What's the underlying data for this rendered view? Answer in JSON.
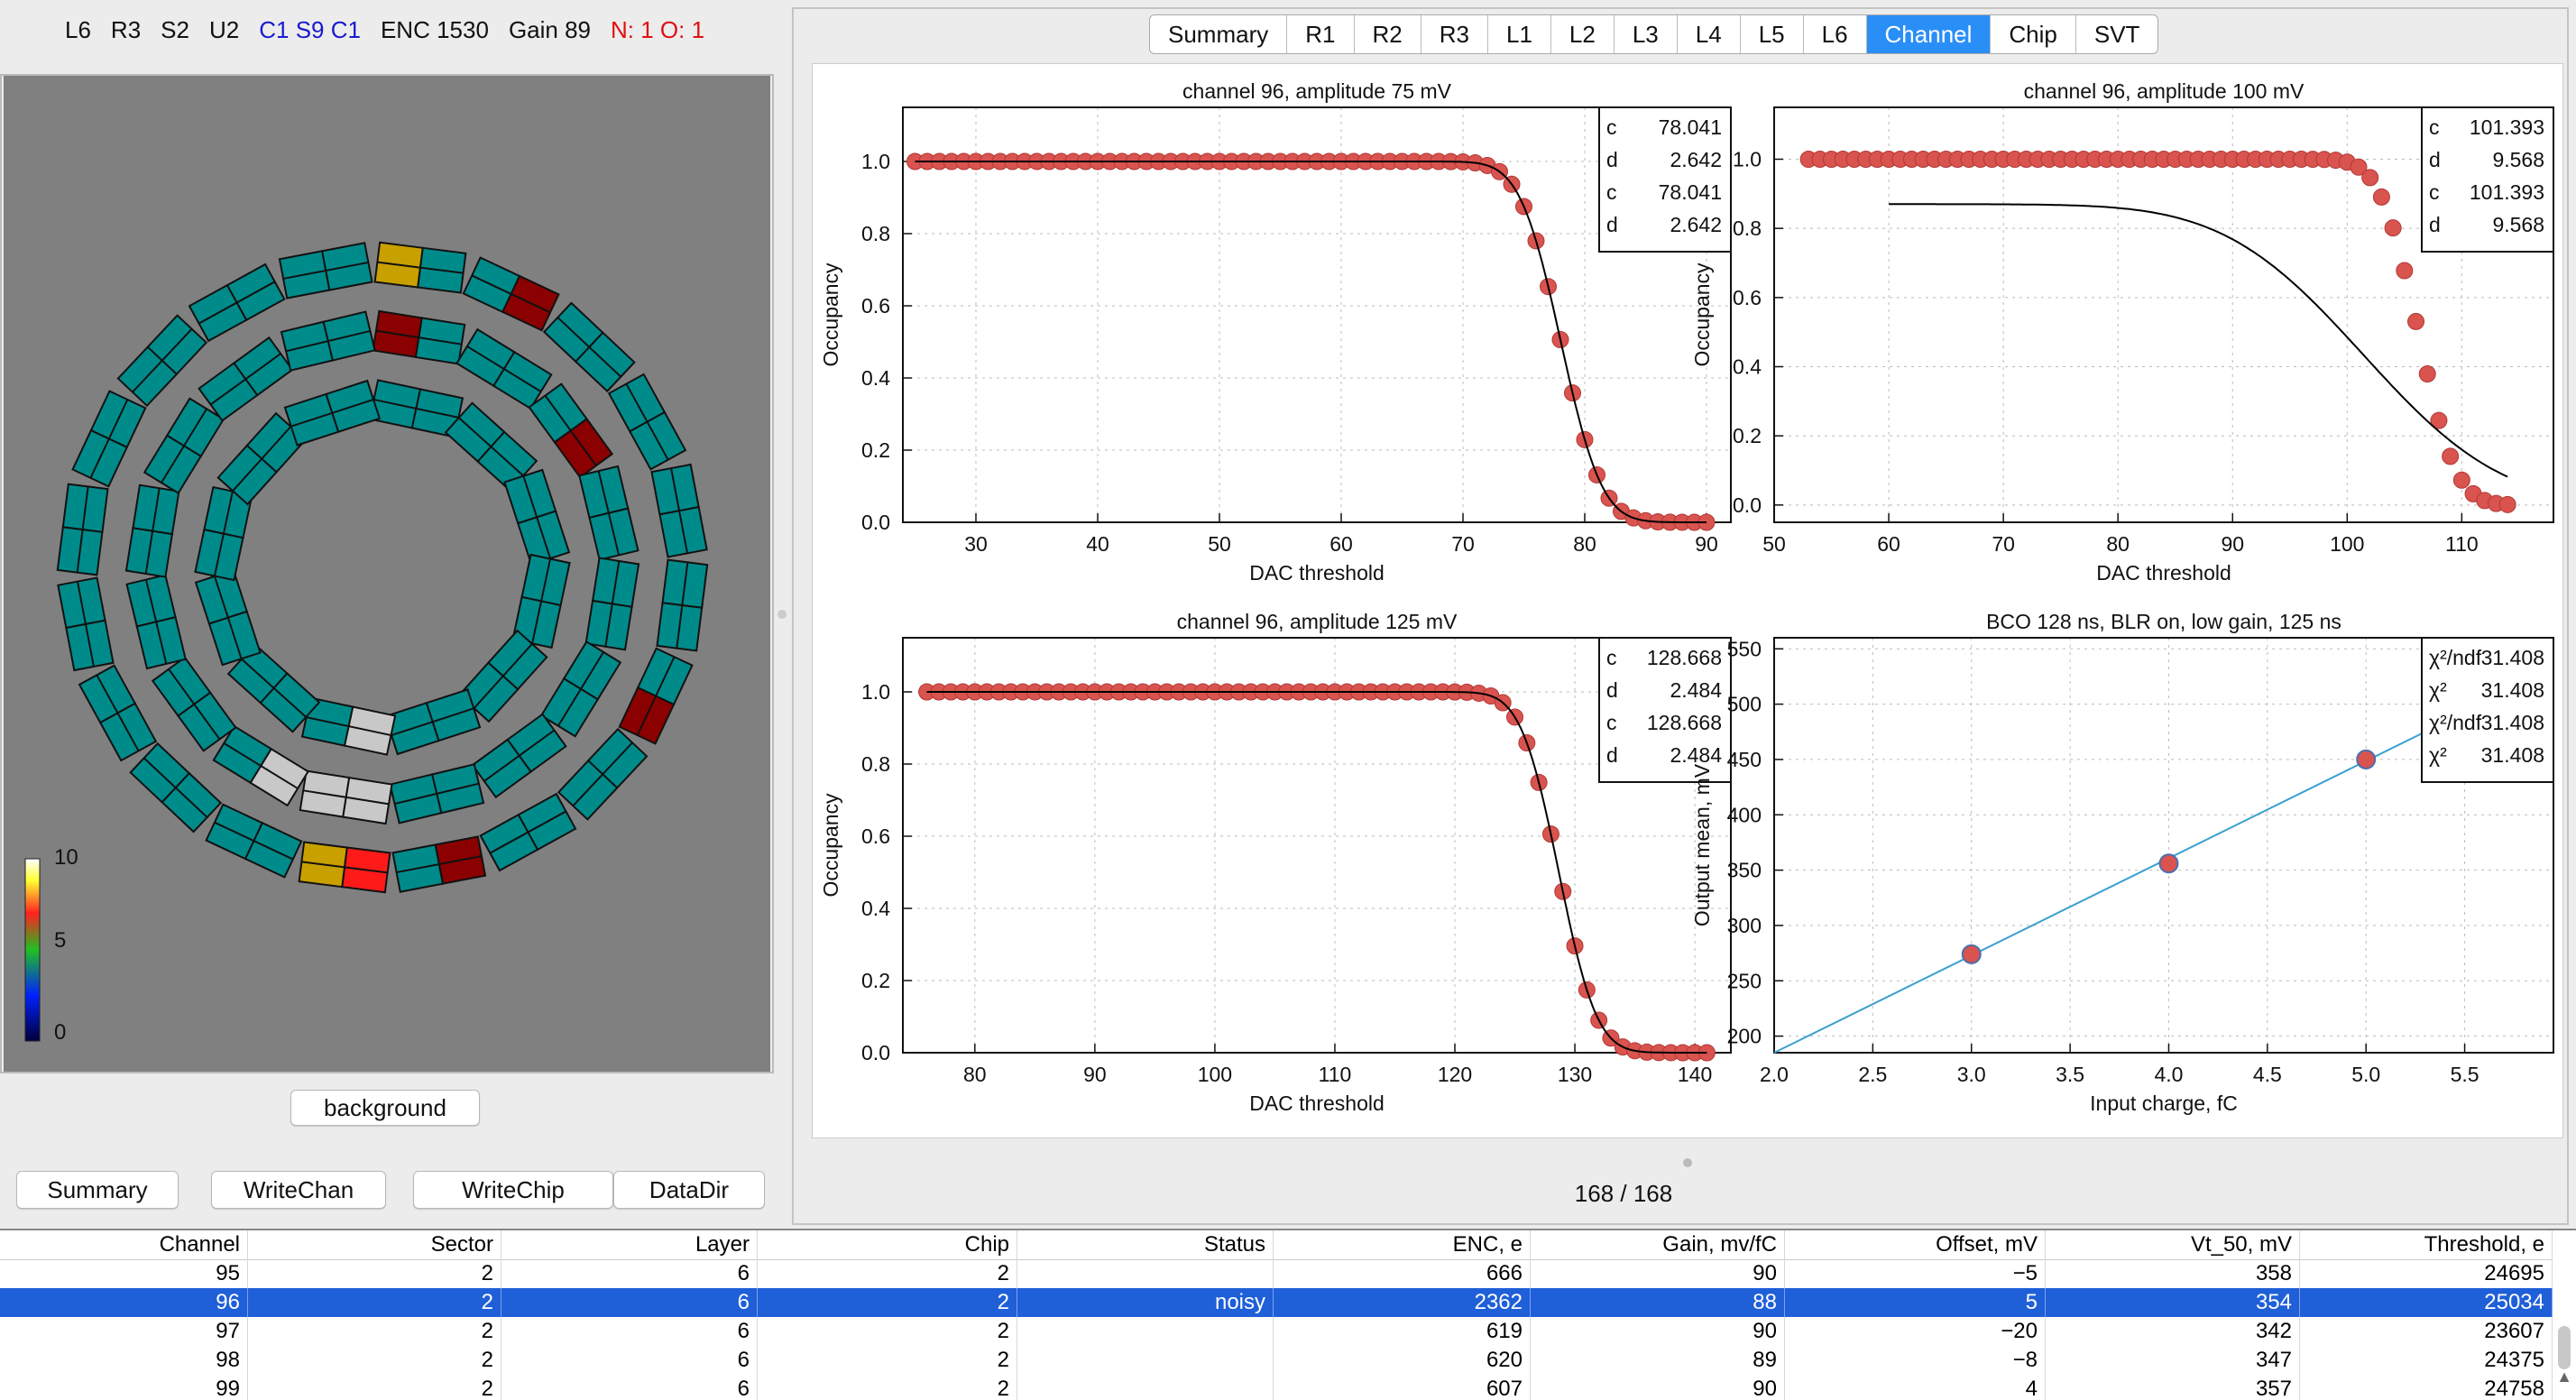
{
  "status": {
    "items": [
      {
        "text": "L6",
        "color": "#111111"
      },
      {
        "text": "R3",
        "color": "#111111"
      },
      {
        "text": "S2",
        "color": "#111111"
      },
      {
        "text": "U2",
        "color": "#111111"
      },
      {
        "text": "C1 S9 C1",
        "color": "#1a1ad0"
      },
      {
        "text": "ENC 1530",
        "color": "#111111"
      },
      {
        "text": "Gain 89",
        "color": "#111111"
      },
      {
        "text": "N: 1 O: 1",
        "color": "#e01010"
      }
    ]
  },
  "map": {
    "colorbar_labels": [
      "10",
      "5",
      "0"
    ],
    "background_button": "background"
  },
  "bottom_buttons": [
    "Summary",
    "WriteChan",
    "WriteChip",
    "DataDir"
  ],
  "tabs": {
    "items": [
      "Summary",
      "R1",
      "R2",
      "R3",
      "L1",
      "L2",
      "L3",
      "L4",
      "L5",
      "L6",
      "Channel",
      "Chip",
      "SVT"
    ],
    "active": "Channel"
  },
  "pager": "168 / 168",
  "chart_data": [
    {
      "type": "scatter",
      "title": "channel 96, amplitude 75 mV",
      "xlabel": "DAC threshold",
      "ylabel": "Occupancy",
      "xlim": [
        24,
        92
      ],
      "ylim": [
        0,
        1.15
      ],
      "xticks": [
        30,
        40,
        50,
        60,
        70,
        80,
        90
      ],
      "yticks": [
        0.0,
        0.2,
        0.4,
        0.6,
        0.8,
        1.0
      ],
      "fit": {
        "c": 78.041,
        "d": 2.642
      },
      "legend": [
        [
          "c",
          "78.041"
        ],
        [
          "d",
          "2.642"
        ],
        [
          "c",
          "78.041"
        ],
        [
          "d",
          "2.642"
        ]
      ],
      "x_range_points": [
        25,
        90
      ],
      "fit_curve": {
        "c": 78.041,
        "d": 2.642,
        "amp": 1.0
      }
    },
    {
      "type": "scatter",
      "title": "channel 96, amplitude 100 mV",
      "xlabel": "DAC threshold",
      "ylabel": "Occupancy",
      "xlim": [
        50,
        118
      ],
      "ylim": [
        -0.05,
        1.15
      ],
      "xticks": [
        50,
        60,
        70,
        80,
        90,
        100,
        110
      ],
      "yticks": [
        0.0,
        0.2,
        0.4,
        0.6,
        0.8,
        1.0
      ],
      "fit": {
        "c": 101.393,
        "d": 9.568
      },
      "legend": [
        [
          "c",
          "101.393"
        ],
        [
          "d",
          "9.568"
        ],
        [
          "c",
          "101.393"
        ],
        [
          "d",
          "9.568"
        ]
      ],
      "x_range_points": [
        53,
        114
      ],
      "fit_curve": {
        "c": 101.393,
        "d": 9.568,
        "amp": 0.87
      }
    },
    {
      "type": "scatter",
      "title": "channel 96, amplitude 125 mV",
      "xlabel": "DAC threshold",
      "ylabel": "Occupancy",
      "xlim": [
        74,
        143
      ],
      "ylim": [
        0,
        1.15
      ],
      "xticks": [
        80,
        90,
        100,
        110,
        120,
        130,
        140
      ],
      "yticks": [
        0.0,
        0.2,
        0.4,
        0.6,
        0.8,
        1.0
      ],
      "fit": {
        "c": 128.668,
        "d": 2.484
      },
      "legend": [
        [
          "c",
          "128.668"
        ],
        [
          "d",
          "2.484"
        ],
        [
          "c",
          "128.668"
        ],
        [
          "d",
          "2.484"
        ]
      ],
      "x_range_points": [
        76,
        141
      ],
      "fit_curve": {
        "c": 128.668,
        "d": 2.484,
        "amp": 1.0
      }
    },
    {
      "type": "line",
      "title": "BCO 128 ns, BLR on, low gain, 125 ns",
      "xlabel": "Input charge, fC",
      "ylabel": "Output mean, mV",
      "xlim": [
        2.0,
        5.95
      ],
      "ylim": [
        185,
        560
      ],
      "xticks": [
        2.0,
        2.5,
        3.0,
        3.5,
        4.0,
        4.5,
        5.0,
        5.5
      ],
      "yticks": [
        200,
        250,
        300,
        350,
        400,
        450,
        500,
        550
      ],
      "points": [
        [
          3.0,
          274
        ],
        [
          4.0,
          356
        ],
        [
          5.0,
          450
        ]
      ],
      "fit_line": [
        [
          2.0,
          185
        ],
        [
          5.3,
          475
        ]
      ],
      "legend": [
        [
          "χ²/ndf",
          "31.408"
        ],
        [
          "χ²",
          "31.408"
        ],
        [
          "χ²/ndf",
          "31.408"
        ],
        [
          "χ²",
          "31.408"
        ]
      ]
    }
  ],
  "table": {
    "columns": [
      "Channel",
      "Sector",
      "Layer",
      "Chip",
      "Status",
      "ENC, e",
      "Gain, mv/fC",
      "Offset, mV",
      "Vt_50, mV",
      "Threshold, e"
    ],
    "rows": [
      [
        "95",
        "2",
        "6",
        "2",
        "",
        "666",
        "90",
        "−5",
        "358",
        "24695"
      ],
      [
        "96",
        "2",
        "6",
        "2",
        "noisy",
        "2362",
        "88",
        "5",
        "354",
        "25034"
      ],
      [
        "97",
        "2",
        "6",
        "2",
        "",
        "619",
        "90",
        "−20",
        "342",
        "23607"
      ],
      [
        "98",
        "2",
        "6",
        "2",
        "",
        "620",
        "89",
        "−8",
        "347",
        "24375"
      ],
      [
        "99",
        "2",
        "6",
        "2",
        "",
        "607",
        "90",
        "4",
        "357",
        "24758"
      ]
    ],
    "selected_row": 1
  },
  "colors": {
    "module_ok": "#008b8b",
    "module_dead": "#8b0000",
    "module_warn": "#c8a000",
    "module_hot": "#ff1a1a",
    "module_off": "#c8c8c8",
    "point": "#d9534f",
    "fit_line": "#3aa0d0",
    "tab_active": "#2a8ef7"
  }
}
